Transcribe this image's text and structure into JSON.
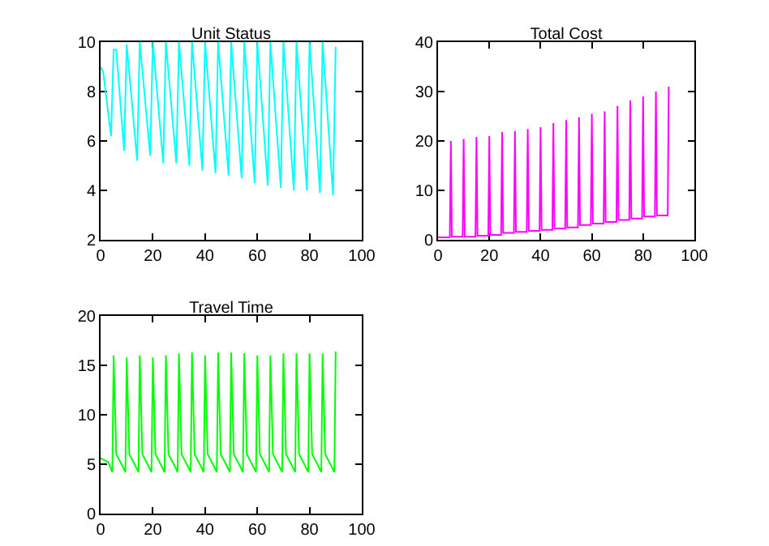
{
  "chart_data": [
    {
      "type": "line",
      "title": "Unit Status",
      "xlim": [
        0,
        100
      ],
      "xticks": [
        0,
        20,
        40,
        60,
        80,
        100
      ],
      "ylim": [
        2,
        10
      ],
      "yticks": [
        2,
        4,
        6,
        8,
        10
      ],
      "x": [
        0,
        1,
        4,
        5,
        6,
        9,
        10,
        14,
        15,
        19,
        20,
        24,
        25,
        29,
        30,
        34,
        35,
        39,
        40,
        44,
        45,
        49,
        50,
        54,
        55,
        59,
        60,
        64,
        65,
        69,
        70,
        74,
        75,
        79,
        80,
        84,
        85,
        89,
        90
      ],
      "series": [
        {
          "color": "#00ffff",
          "values": [
            9.0,
            8.8,
            6.2,
            9.7,
            9.7,
            5.6,
            9.9,
            5.2,
            10,
            5.4,
            10,
            5.1,
            10,
            5.1,
            10,
            5.0,
            10,
            4.8,
            10,
            4.7,
            10,
            4.6,
            10,
            4.5,
            10,
            4.3,
            10,
            4.2,
            10,
            4.1,
            10,
            4.0,
            10,
            4.0,
            10,
            3.9,
            10,
            3.8,
            9.8
          ]
        }
      ]
    },
    {
      "type": "line",
      "title": "Total Cost",
      "xlim": [
        0,
        100
      ],
      "xticks": [
        0,
        20,
        40,
        60,
        80,
        100
      ],
      "ylim": [
        0,
        40
      ],
      "yticks": [
        0,
        10,
        20,
        30,
        40
      ],
      "x": [
        0,
        4.6,
        5,
        5.4,
        9.6,
        10,
        10.4,
        14.6,
        15,
        15.4,
        19.6,
        20,
        20.4,
        24.6,
        25,
        25.4,
        29.6,
        30,
        30.4,
        34.6,
        35,
        35.4,
        39.6,
        40,
        40.4,
        44.6,
        45,
        45.4,
        49.6,
        50,
        50.4,
        54.6,
        55,
        55.4,
        59.6,
        60,
        60.4,
        64.6,
        65,
        65.4,
        69.6,
        70,
        70.4,
        74.6,
        75,
        75.4,
        79.6,
        80,
        80.4,
        84.6,
        85,
        85.4,
        89.6,
        90
      ],
      "series": [
        {
          "color": "#ff00ff",
          "values": [
            0.5,
            0.5,
            20,
            0.6,
            0.6,
            20.4,
            0.6,
            0.6,
            20.8,
            0.8,
            0.8,
            21,
            1.0,
            1.0,
            21.8,
            1.4,
            1.4,
            22,
            1.6,
            1.6,
            22.4,
            1.8,
            1.8,
            22.8,
            2.0,
            2.0,
            23.6,
            2.3,
            2.3,
            24.2,
            2.5,
            2.5,
            24.8,
            3.0,
            3.0,
            25.5,
            3.3,
            3.3,
            26,
            3.6,
            3.6,
            27.1,
            4.0,
            4.0,
            28.2,
            4.3,
            4.3,
            29,
            4.7,
            4.7,
            30,
            4.9,
            4.9,
            31
          ]
        }
      ]
    },
    {
      "type": "line",
      "title": "Travel Time",
      "xlim": [
        0,
        100
      ],
      "xticks": [
        0,
        20,
        40,
        60,
        80,
        100
      ],
      "ylim": [
        0,
        20
      ],
      "yticks": [
        0,
        5,
        10,
        15,
        20
      ],
      "x": [
        0,
        3,
        4.5,
        5,
        6,
        8,
        9.5,
        10,
        11,
        13,
        14.5,
        15,
        16,
        18,
        19.5,
        20,
        21,
        23,
        24.5,
        25,
        26,
        28,
        29.5,
        30,
        31,
        33,
        34.5,
        35,
        36,
        38,
        39.5,
        40,
        41,
        43,
        44.5,
        45,
        46,
        48,
        49.5,
        50,
        51,
        53,
        54.5,
        55,
        56,
        58,
        59.5,
        60,
        61,
        63,
        64.5,
        65,
        66,
        68,
        69.5,
        70,
        71,
        73,
        74.5,
        75,
        76,
        78,
        79.5,
        80,
        81,
        83,
        84.5,
        85,
        86,
        88,
        89.5,
        90
      ],
      "series": [
        {
          "color": "#00ff00",
          "values": [
            5.6,
            5.2,
            4.2,
            16,
            6,
            5,
            4.2,
            15.8,
            6,
            5,
            4.2,
            16,
            6,
            5,
            4.2,
            15.8,
            6,
            5,
            4.2,
            16,
            6,
            5,
            4.2,
            16.2,
            6,
            5,
            4.2,
            16.3,
            6,
            5,
            4.2,
            16,
            6,
            5,
            4.2,
            16.3,
            6,
            5,
            4.2,
            16.3,
            6,
            5,
            4.2,
            16.2,
            6,
            5,
            4.2,
            16,
            6,
            5,
            4.2,
            16,
            6,
            5,
            4.2,
            16.2,
            6,
            5,
            4.2,
            16.2,
            6,
            5,
            4.2,
            16.2,
            6,
            5,
            4.2,
            16.2,
            6,
            5,
            4.2,
            16.4
          ]
        }
      ]
    }
  ]
}
